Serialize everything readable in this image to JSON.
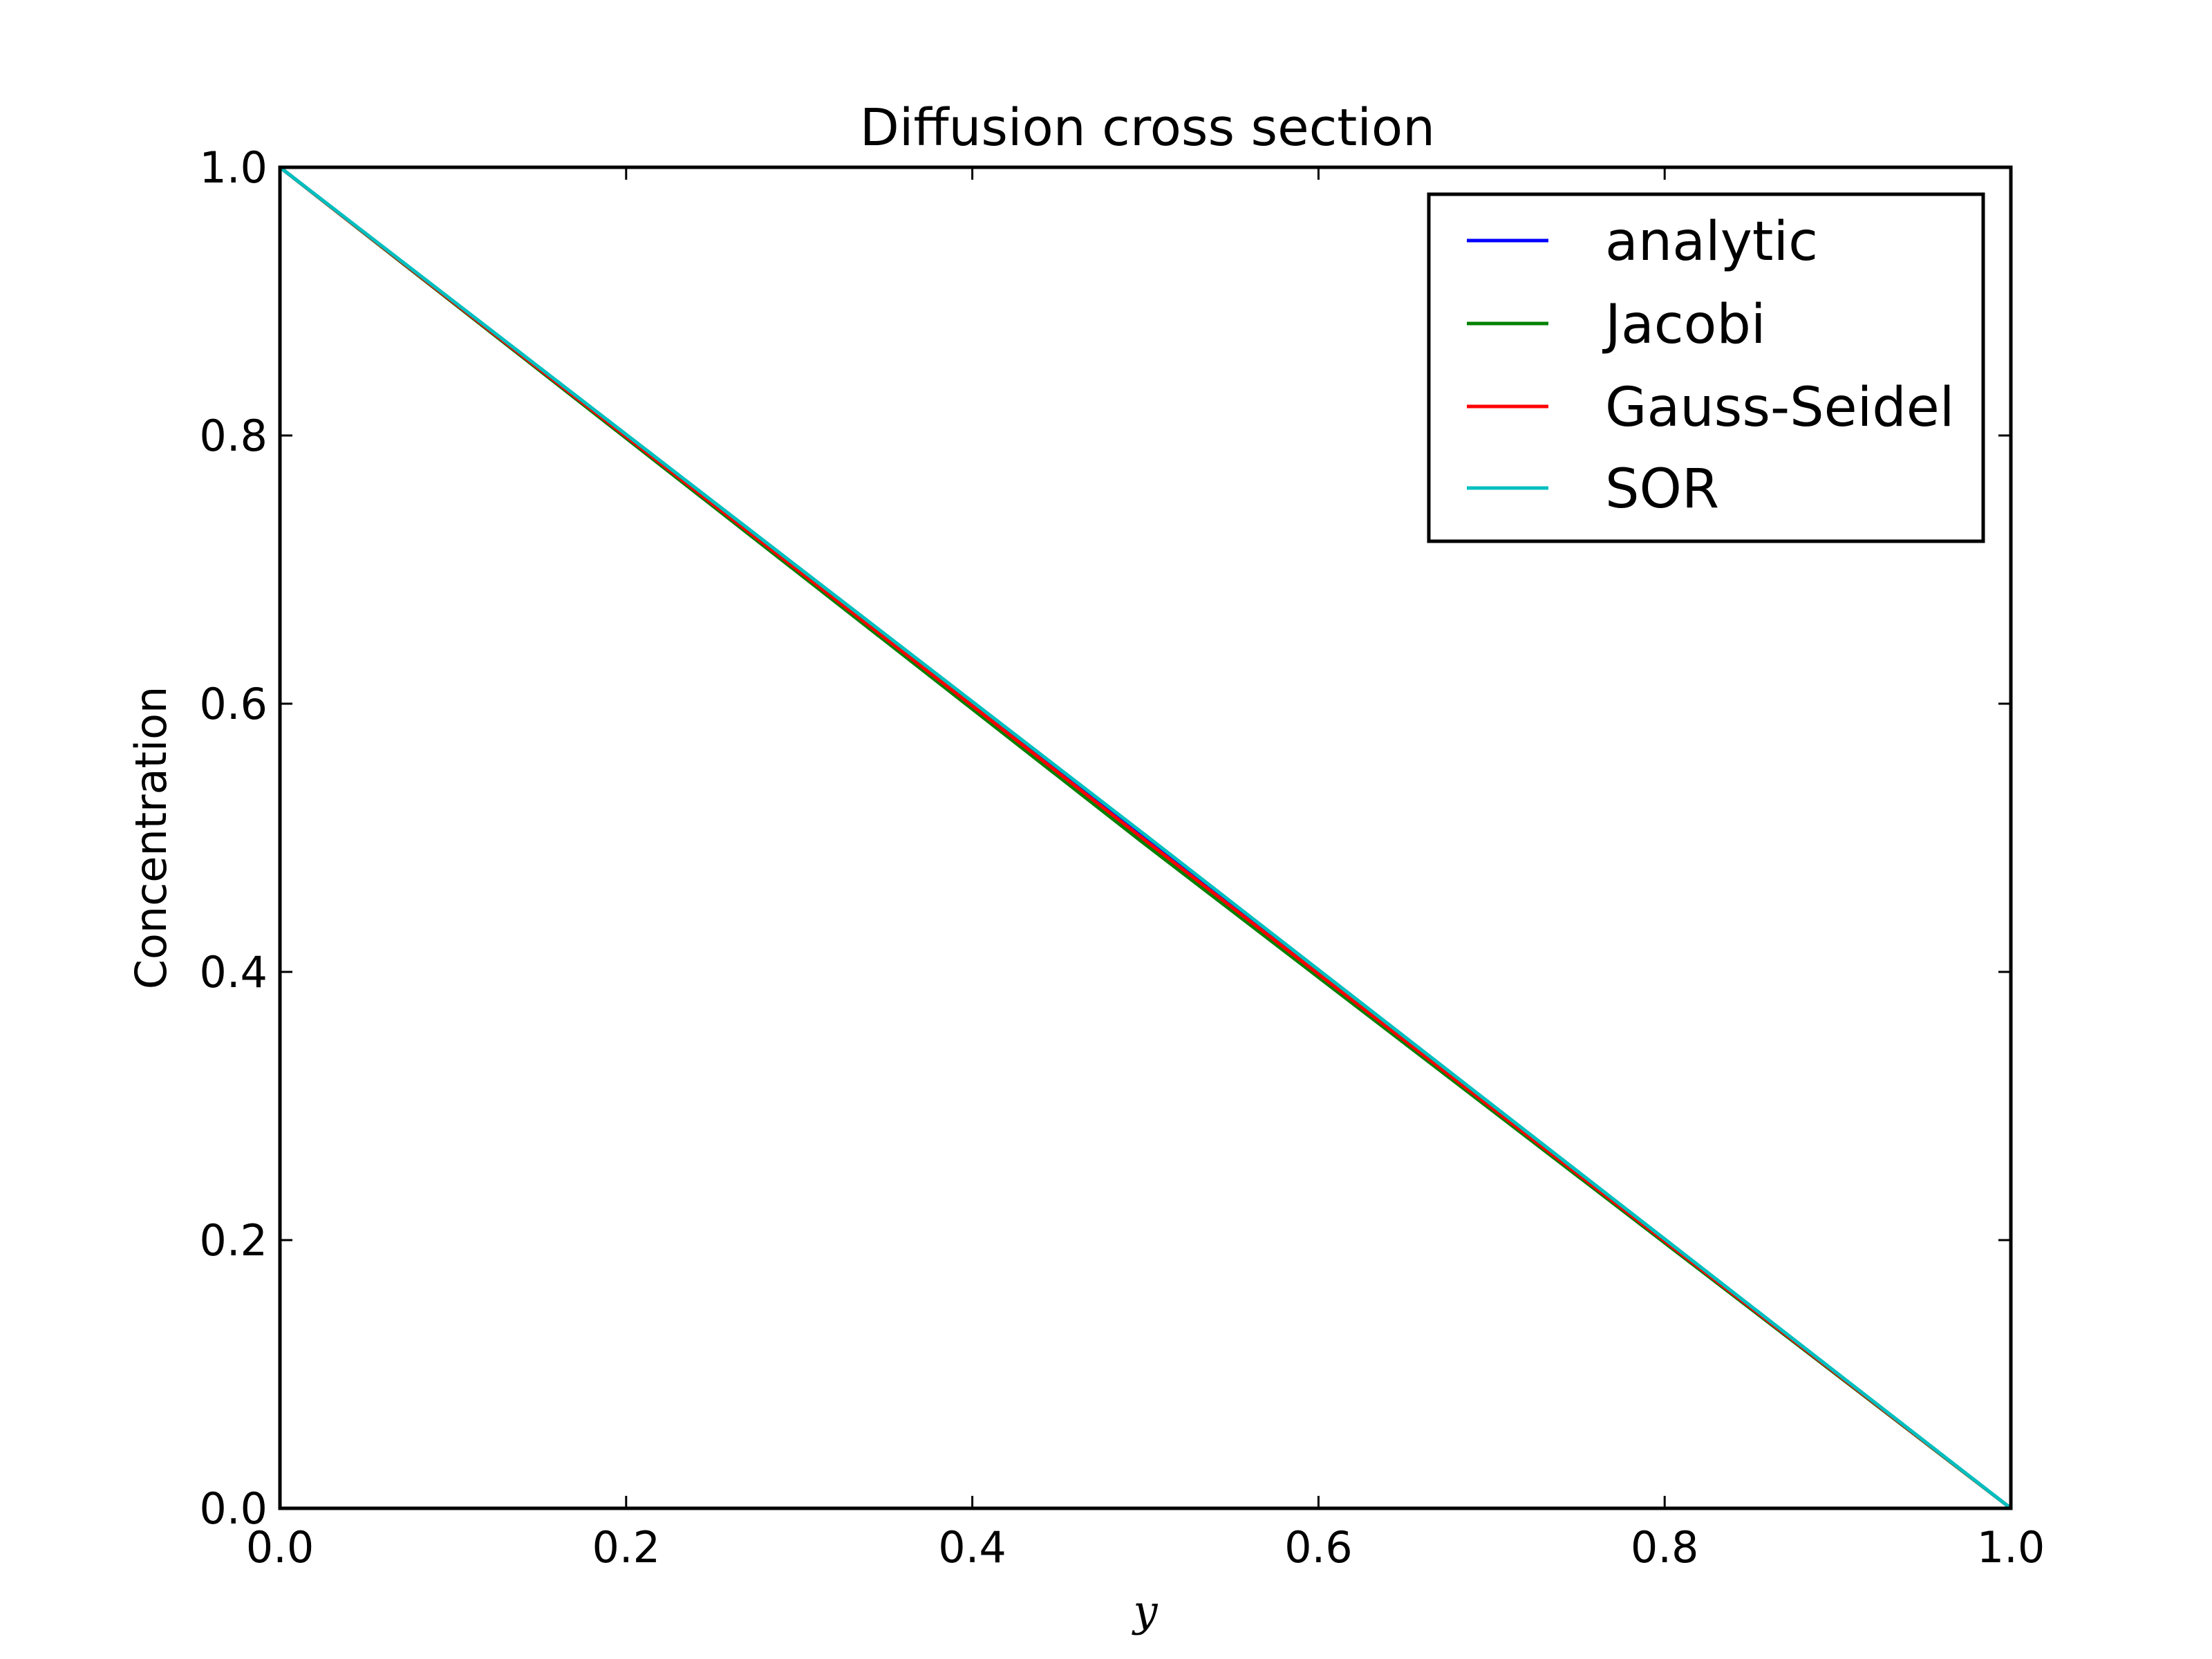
{
  "chart_data": {
    "type": "line",
    "title": "Diffusion cross section",
    "xlabel": "y",
    "ylabel": "Concentration",
    "xlim": [
      0.0,
      1.0
    ],
    "ylim": [
      0.0,
      1.0
    ],
    "xticks": [
      "0.0",
      "0.2",
      "0.4",
      "0.6",
      "0.8",
      "1.0"
    ],
    "yticks": [
      "0.0",
      "0.2",
      "0.4",
      "0.6",
      "0.8",
      "1.0"
    ],
    "grid": false,
    "legend_position": "top-right",
    "series": [
      {
        "name": "analytic",
        "color": "#0000ff",
        "x": [
          0.0,
          0.5,
          1.0
        ],
        "y": [
          1.0,
          0.5,
          0.0
        ]
      },
      {
        "name": "Jacobi",
        "color": "#008000",
        "x": [
          0.0,
          0.5,
          1.0
        ],
        "y": [
          1.0,
          0.495,
          0.0
        ]
      },
      {
        "name": "Gauss-Seidel",
        "color": "#ff0000",
        "x": [
          0.0,
          0.5,
          1.0
        ],
        "y": [
          1.0,
          0.498,
          0.0
        ]
      },
      {
        "name": "SOR",
        "color": "#00bfbf",
        "x": [
          0.0,
          0.5,
          1.0
        ],
        "y": [
          1.0,
          0.502,
          0.0
        ]
      }
    ]
  }
}
